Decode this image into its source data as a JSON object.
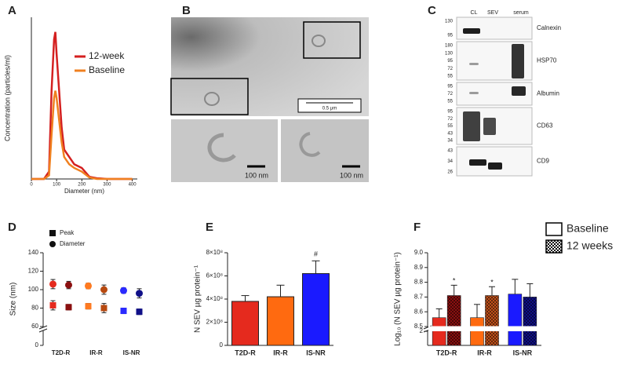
{
  "chart_data": [
    {
      "type": "line",
      "label": "A",
      "x_label": "Diameter (nm)",
      "y_label": "Concentration (particles/ml)",
      "x": [
        0,
        50,
        70,
        80,
        90,
        95,
        100,
        110,
        120,
        130,
        150,
        170,
        200,
        230,
        260,
        300,
        400
      ],
      "series": [
        {
          "name": "12-week",
          "color": "#d42020",
          "values": [
            0,
            0,
            1,
            12,
            19,
            20,
            17,
            12,
            7,
            4,
            3,
            2,
            1.5,
            0.3,
            0.1,
            0,
            0
          ]
        },
        {
          "name": "Baseline",
          "color": "#f08020",
          "values": [
            0,
            0,
            0.5,
            6,
            11,
            12,
            11,
            8,
            5,
            3,
            2,
            1.5,
            1,
            0.2,
            0,
            0,
            0
          ]
        }
      ],
      "xlim": [
        0,
        420
      ],
      "xticks": [
        0,
        100,
        200,
        300,
        400
      ],
      "ylim": [
        0,
        22
      ],
      "legend": "upper right"
    },
    {
      "type": "scatter",
      "label": "D",
      "y_label": "Size (nm)",
      "categories": [
        "T2D-R",
        "IR-R",
        "IS-NR"
      ],
      "colors": [
        [
          "#e52a1e",
          "#8b1010"
        ],
        [
          "#ff7a20",
          "#b84a10"
        ],
        [
          "#2a2aff",
          "#101088"
        ]
      ],
      "series": [
        {
          "name": "Peak",
          "marker": "square",
          "values": [
            [
              83,
              81
            ],
            [
              82,
              80
            ],
            [
              77,
              76
            ]
          ],
          "errors": [
            [
              5,
              3
            ],
            [
              3,
              5
            ],
            [
              3,
              3
            ]
          ]
        },
        {
          "name": "Diameter",
          "marker": "circle",
          "values": [
            [
              106,
              105
            ],
            [
              104,
              100
            ],
            [
              99,
              96
            ]
          ],
          "errors": [
            [
              5,
              4
            ],
            [
              3,
              5
            ],
            [
              3,
              5
            ]
          ]
        }
      ],
      "ylim": [
        0,
        140
      ],
      "axis_break": [
        0,
        60
      ],
      "yticks": [
        0,
        60,
        80,
        100,
        120,
        140
      ],
      "legend": "upper left"
    },
    {
      "type": "bar",
      "label": "E",
      "y_label": "N SEV µg protein⁻¹",
      "categories": [
        "T2D-R",
        "IR-R",
        "IS-NR"
      ],
      "values": [
        380000000,
        420000000,
        620000000
      ],
      "errors": [
        50000000,
        100000000,
        110000000
      ],
      "colors": [
        "#e52a1e",
        "#ff6a10",
        "#1a1aff"
      ],
      "annotations": [
        null,
        null,
        "#"
      ],
      "ylim": [
        0,
        800000000
      ],
      "yticks": [
        0,
        {
          "value": 200000000,
          "label": "2×10⁸"
        },
        {
          "value": 400000000,
          "label": "4×10⁸"
        },
        {
          "value": 600000000,
          "label": "6×10⁸"
        },
        {
          "value": 800000000,
          "label": "8×10⁸"
        }
      ]
    },
    {
      "type": "grouped_bar",
      "label": "F",
      "y_label": "Log₁₀ (N SEV µg protein⁻¹)",
      "categories": [
        "T2D-R",
        "IR-R",
        "IS-NR"
      ],
      "series": [
        {
          "name": "Baseline",
          "hatch": false,
          "colors": [
            "#e52a1e",
            "#ff6a10",
            "#1a1aff"
          ],
          "values": [
            8.56,
            8.56,
            8.72
          ],
          "errors": [
            0.06,
            0.09,
            0.1
          ],
          "marks": [
            null,
            null,
            null
          ]
        },
        {
          "name": "12 weeks",
          "hatch": true,
          "colors": [
            "#8b1010",
            "#c0501a",
            "#101088"
          ],
          "values": [
            8.71,
            8.71,
            8.7
          ],
          "errors": [
            0.07,
            0.06,
            0.09
          ],
          "marks": [
            "*",
            "*",
            null
          ]
        }
      ],
      "ylim": [
        0,
        9
      ],
      "axis_break": [
        2,
        8.5
      ],
      "yticks": [
        2,
        8.5,
        8.6,
        8.7,
        8.8,
        8.9,
        {
          "value": 9,
          "label": "9.0"
        }
      ],
      "legend": "upper right"
    }
  ],
  "panel_b": {
    "label": "B",
    "scale_bar": "0.5 μm",
    "inset_scale_bars": [
      "100 nm",
      "100 nm"
    ]
  },
  "panel_c": {
    "label": "C",
    "lanes": [
      "CL",
      "SEV",
      "serum"
    ],
    "blots": [
      {
        "name": "Calnexin",
        "markers": [
          "130",
          "95"
        ]
      },
      {
        "name": "HSP70",
        "markers": [
          "180",
          "130",
          "95",
          "72",
          "55"
        ]
      },
      {
        "name": "Albumin",
        "markers": [
          "95",
          "72",
          "55"
        ]
      },
      {
        "name": "CD63",
        "markers": [
          "95",
          "72",
          "55",
          "43",
          "34"
        ]
      },
      {
        "name": "CD9",
        "markers": [
          "43",
          "34",
          "26"
        ]
      }
    ]
  }
}
